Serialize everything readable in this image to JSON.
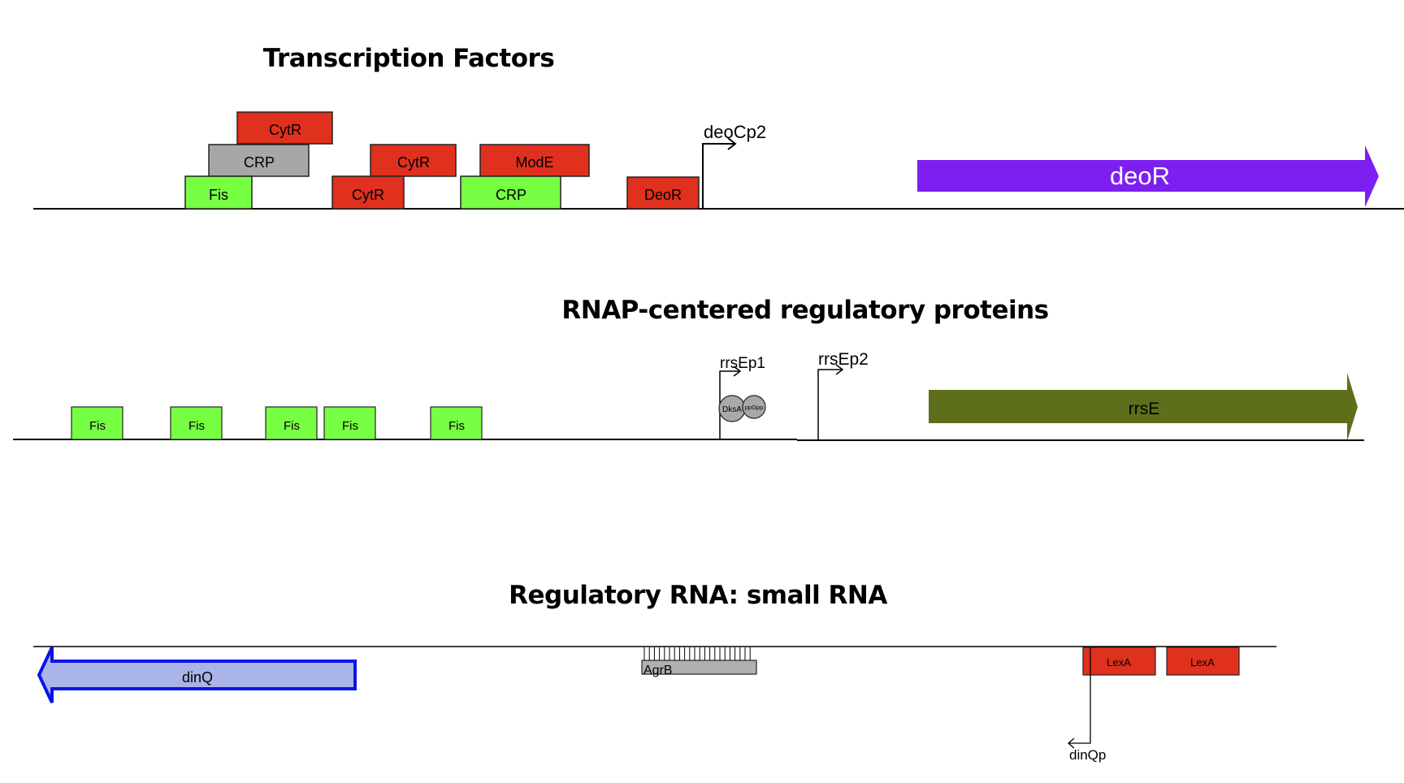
{
  "sections": {
    "transcription_factors": {
      "title": "Transcription Factors",
      "promoter": "deoCp2",
      "gene": "deoR",
      "sites": {
        "cytr_top": "CytR",
        "crp_left": "CRP",
        "fis": "Fis",
        "cytr_mid": "CytR",
        "cytr_low": "CytR",
        "mode": "ModE",
        "crp_right": "CRP",
        "deor": "DeoR"
      }
    },
    "rnap": {
      "title": "RNAP-centered regulatory proteins",
      "promoter1": "rrsEp1",
      "promoter2": "rrsEp2",
      "gene": "rrsE",
      "fis_sites": [
        "Fis",
        "Fis",
        "Fis",
        "Fis",
        "Fis"
      ],
      "dksa": "DksA",
      "ppgpp": "ppGpp"
    },
    "small_rna": {
      "title": "Regulatory RNA: small RNA",
      "gene": "dinQ",
      "srna": "AgrB",
      "lexa": [
        "LexA",
        "LexA"
      ],
      "promoter": "dinQp"
    }
  },
  "colors": {
    "repressor_red": "#e0301e",
    "activator_green": "#77ff44",
    "crp_gray": "#a6a7a8",
    "deor_purple": "#7c1ff0",
    "rrse_olive": "#5e6f1b",
    "dinq_fill": "#aab4e6",
    "dinq_stroke": "#0a14e6",
    "agrb_gray": "#b0b0b0",
    "sigma_gray": "#a9a9a9"
  }
}
